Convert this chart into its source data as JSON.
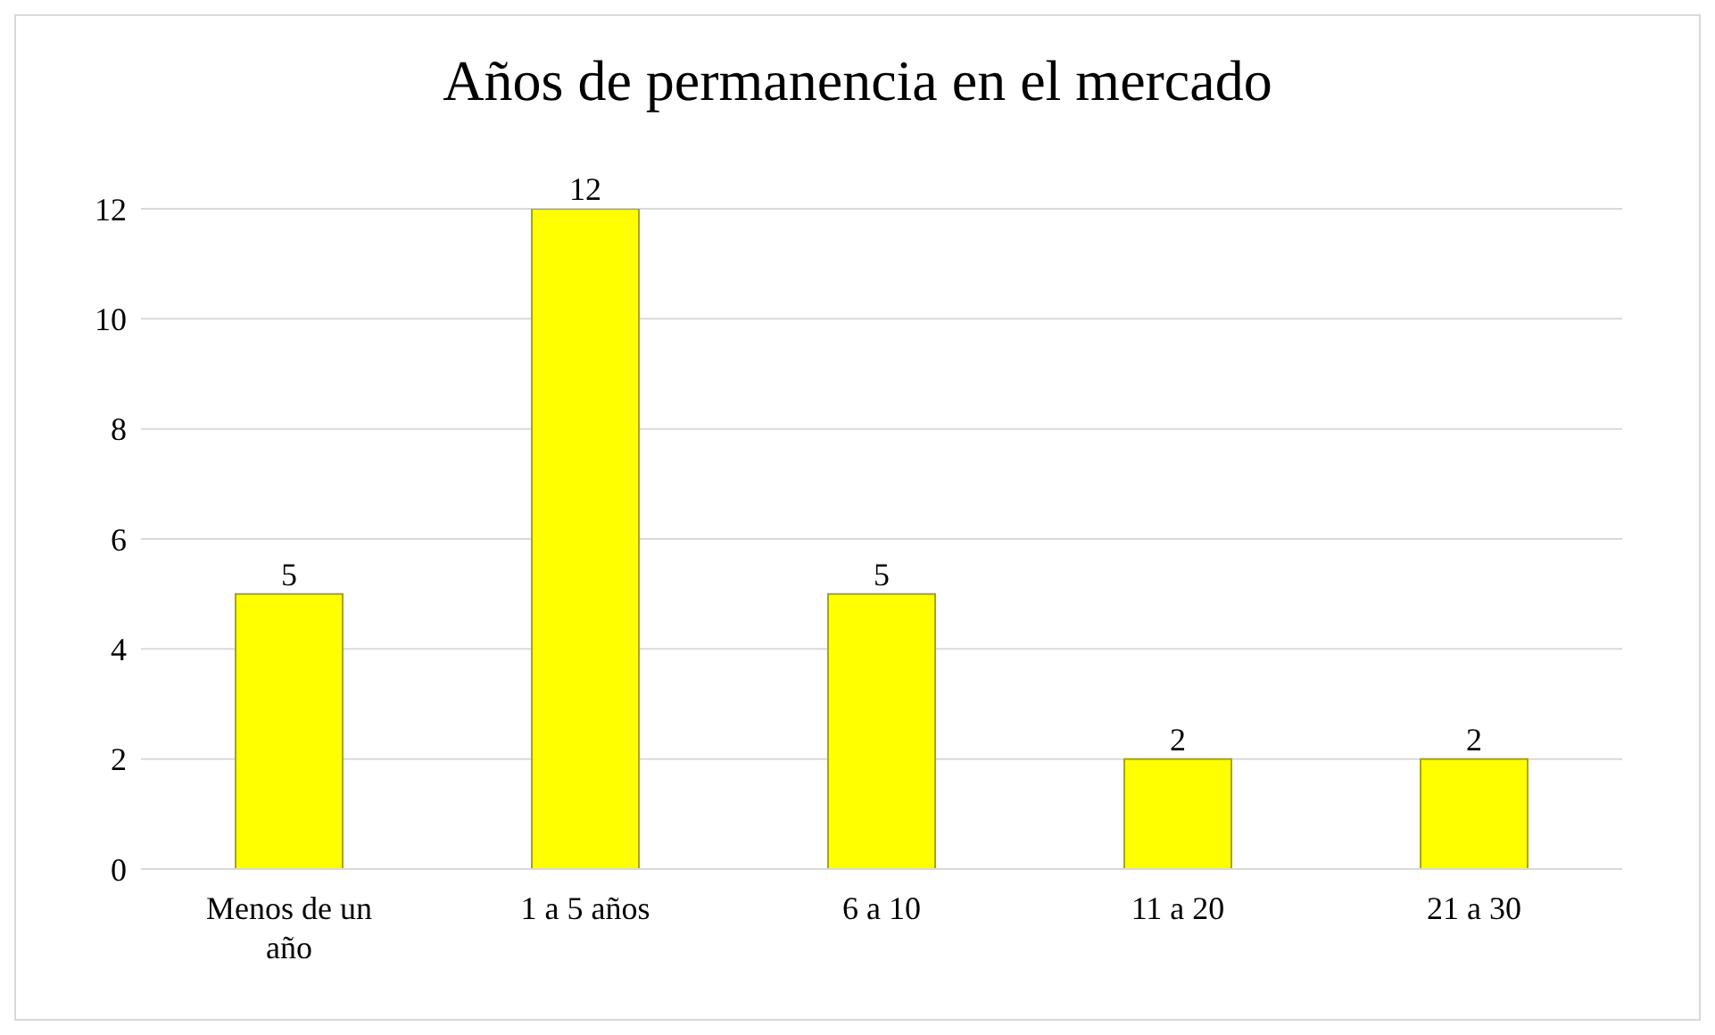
{
  "chart_data": {
    "type": "bar",
    "title": "Años de permanencia en el mercado",
    "categories": [
      "Menos de un año",
      "1 a 5 años",
      "6 a 10",
      "11 a 20",
      "21 a 30"
    ],
    "values": [
      5,
      12,
      5,
      2,
      2
    ],
    "color": "#ffff00",
    "ylim": [
      0,
      12
    ],
    "yticks": [
      0,
      2,
      4,
      6,
      8,
      10,
      12
    ],
    "grid": "y",
    "data_labels": true
  }
}
